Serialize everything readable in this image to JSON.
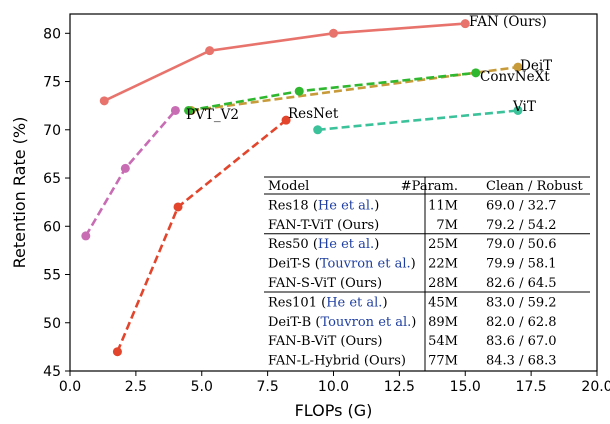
{
  "chart_data": {
    "type": "line",
    "xlabel": "FLOPs (G)",
    "ylabel": "Retention Rate (%)",
    "xlim": [
      0,
      20
    ],
    "ylim": [
      45,
      82
    ],
    "xticks": [
      "0.0",
      "2.5",
      "5.0",
      "7.5",
      "10.0",
      "12.5",
      "15.0",
      "17.5",
      "20.0"
    ],
    "yticks": [
      "45",
      "50",
      "55",
      "60",
      "65",
      "70",
      "75",
      "80"
    ],
    "grid": false,
    "series": [
      {
        "name": "FAN (Ours)",
        "color": "#e8736c",
        "style": "solid",
        "x": [
          1.3,
          5.3,
          10.0,
          15.0
        ],
        "y": [
          73.0,
          78.2,
          80.0,
          81.0
        ]
      },
      {
        "name": "ResNet",
        "color": "#e2452c",
        "style": "dashed",
        "x": [
          1.8,
          4.1,
          8.2
        ],
        "y": [
          47.0,
          62.0,
          71.0
        ]
      },
      {
        "name": "PVT_V2",
        "color": "#c86cb4",
        "style": "dashed",
        "x": [
          0.6,
          2.1,
          4.0
        ],
        "y": [
          59.0,
          66.0,
          72.0
        ]
      },
      {
        "name": "DeiT",
        "color": "#c89b3a",
        "style": "dashed",
        "x": [
          4.6,
          17.0
        ],
        "y": [
          72.0,
          76.5
        ]
      },
      {
        "name": "ConvNeXt",
        "color": "#2fb82f",
        "style": "dashed",
        "x": [
          4.5,
          8.7,
          15.4
        ],
        "y": [
          72.0,
          74.0,
          75.9
        ]
      },
      {
        "name": "ViT",
        "color": "#3cc29a",
        "style": "dashed",
        "x": [
          9.4,
          17.0
        ],
        "y": [
          70.0,
          72.0
        ]
      }
    ],
    "table": {
      "headers": [
        "Model",
        "#Param.",
        "Clean / Robust"
      ],
      "groups": [
        [
          {
            "name": "Res18",
            "cite": "He et al.",
            "params": "11M",
            "score": "69.0 / 32.7"
          },
          {
            "name": "FAN-T-ViT (Ours)",
            "cite": "",
            "params": "7M",
            "score": "79.2 / 54.2"
          }
        ],
        [
          {
            "name": "Res50",
            "cite": "He et al.",
            "params": "25M",
            "score": "79.0 / 50.6"
          },
          {
            "name": "DeiT-S",
            "cite": "Touvron et al.",
            "params": "22M",
            "score": "79.9 / 58.1"
          },
          {
            "name": "FAN-S-ViT (Ours)",
            "cite": "",
            "params": "28M",
            "score": "82.6 / 64.5"
          }
        ],
        [
          {
            "name": "Res101",
            "cite": "He et al.",
            "params": "45M",
            "score": "83.0 / 59.2"
          },
          {
            "name": "DeiT-B",
            "cite": "Touvron et al.",
            "params": "89M",
            "score": "82.0 / 62.8"
          },
          {
            "name": "FAN-B-ViT (Ours)",
            "cite": "",
            "params": "54M",
            "score": "83.6 / 67.0"
          },
          {
            "name": "FAN-L-Hybrid (Ours)",
            "cite": "",
            "params": "77M",
            "score": "84.3 / 68.3"
          }
        ]
      ]
    }
  }
}
